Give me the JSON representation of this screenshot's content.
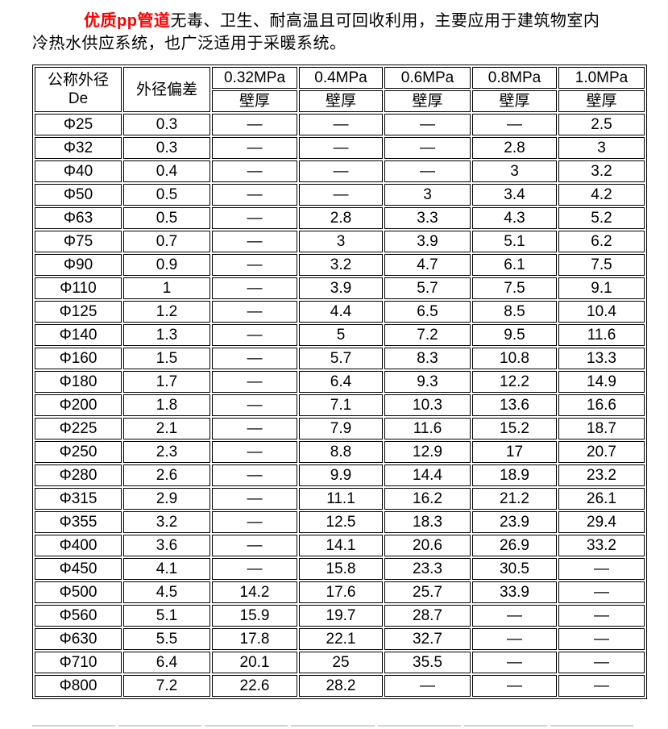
{
  "intro": {
    "highlight": "优质pp管道",
    "line1": "无毒、卫生、耐高温且可回收利用，主要应用于建筑物室内",
    "line2": "冷热水供应系统，也广泛适用于采暖系统。"
  },
  "colors": {
    "highlight_red": "#ff0000",
    "table_border": "#000000",
    "second_table_border": "#ccd3dc"
  },
  "table": {
    "header": {
      "diameter_line1": "公称外径",
      "diameter_line2": "De",
      "deviation": "外径偏差",
      "wall_thickness_label": "壁厚"
    },
    "pressure_columns": [
      "0.32MPa",
      "0.4MPa",
      "0.6MPa",
      "0.8MPa",
      "1.0MPa"
    ],
    "rows": [
      {
        "diameter": "Φ25",
        "deviation": "0.3",
        "wall_thickness": [
          "—",
          "—",
          "—",
          "—",
          "2.5"
        ]
      },
      {
        "diameter": "Φ32",
        "deviation": "0.3",
        "wall_thickness": [
          "—",
          "—",
          "—",
          "2.8",
          "3"
        ]
      },
      {
        "diameter": "Φ40",
        "deviation": "0.4",
        "wall_thickness": [
          "—",
          "—",
          "—",
          "3",
          "3.2"
        ]
      },
      {
        "diameter": "Φ50",
        "deviation": "0.5",
        "wall_thickness": [
          "—",
          "—",
          "3",
          "3.4",
          "4.2"
        ]
      },
      {
        "diameter": "Φ63",
        "deviation": "0.5",
        "wall_thickness": [
          "—",
          "2.8",
          "3.3",
          "4.3",
          "5.2"
        ]
      },
      {
        "diameter": "Φ75",
        "deviation": "0.7",
        "wall_thickness": [
          "—",
          "3",
          "3.9",
          "5.1",
          "6.2"
        ]
      },
      {
        "diameter": "Φ90",
        "deviation": "0.9",
        "wall_thickness": [
          "—",
          "3.2",
          "4.7",
          "6.1",
          "7.5"
        ]
      },
      {
        "diameter": "Φ110",
        "deviation": "1",
        "wall_thickness": [
          "—",
          "3.9",
          "5.7",
          "7.5",
          "9.1"
        ]
      },
      {
        "diameter": "Φ125",
        "deviation": "1.2",
        "wall_thickness": [
          "—",
          "4.4",
          "6.5",
          "8.5",
          "10.4"
        ]
      },
      {
        "diameter": "Φ140",
        "deviation": "1.3",
        "wall_thickness": [
          "—",
          "5",
          "7.2",
          "9.5",
          "11.6"
        ]
      },
      {
        "diameter": "Φ160",
        "deviation": "1.5",
        "wall_thickness": [
          "—",
          "5.7",
          "8.3",
          "10.8",
          "13.3"
        ]
      },
      {
        "diameter": "Φ180",
        "deviation": "1.7",
        "wall_thickness": [
          "—",
          "6.4",
          "9.3",
          "12.2",
          "14.9"
        ]
      },
      {
        "diameter": "Φ200",
        "deviation": "1.8",
        "wall_thickness": [
          "—",
          "7.1",
          "10.3",
          "13.6",
          "16.6"
        ]
      },
      {
        "diameter": "Φ225",
        "deviation": "2.1",
        "wall_thickness": [
          "—",
          "7.9",
          "11.6",
          "15.2",
          "18.7"
        ]
      },
      {
        "diameter": "Φ250",
        "deviation": "2.3",
        "wall_thickness": [
          "—",
          "8.8",
          "12.9",
          "17",
          "20.7"
        ]
      },
      {
        "diameter": "Φ280",
        "deviation": "2.6",
        "wall_thickness": [
          "—",
          "9.9",
          "14.4",
          "18.9",
          "23.2"
        ]
      },
      {
        "diameter": "Φ315",
        "deviation": "2.9",
        "wall_thickness": [
          "—",
          "11.1",
          "16.2",
          "21.2",
          "26.1"
        ]
      },
      {
        "diameter": "Φ355",
        "deviation": "3.2",
        "wall_thickness": [
          "—",
          "12.5",
          "18.3",
          "23.9",
          "29.4"
        ]
      },
      {
        "diameter": "Φ400",
        "deviation": "3.6",
        "wall_thickness": [
          "—",
          "14.1",
          "20.6",
          "26.9",
          "33.2"
        ]
      },
      {
        "diameter": "Φ450",
        "deviation": "4.1",
        "wall_thickness": [
          "—",
          "15.8",
          "23.3",
          "30.5",
          "—"
        ]
      },
      {
        "diameter": "Φ500",
        "deviation": "4.5",
        "wall_thickness": [
          "14.2",
          "17.6",
          "25.7",
          "33.9",
          "—"
        ]
      },
      {
        "diameter": "Φ560",
        "deviation": "5.1",
        "wall_thickness": [
          "15.9",
          "19.7",
          "28.7",
          "—",
          "—"
        ]
      },
      {
        "diameter": "Φ630",
        "deviation": "5.5",
        "wall_thickness": [
          "17.8",
          "22.1",
          "32.7",
          "—",
          "—"
        ]
      },
      {
        "diameter": "Φ710",
        "deviation": "6.4",
        "wall_thickness": [
          "20.1",
          "25",
          "35.5",
          "—",
          "—"
        ]
      },
      {
        "diameter": "Φ800",
        "deviation": "7.2",
        "wall_thickness": [
          "22.6",
          "28.2",
          "—",
          "—",
          "—"
        ]
      }
    ]
  }
}
